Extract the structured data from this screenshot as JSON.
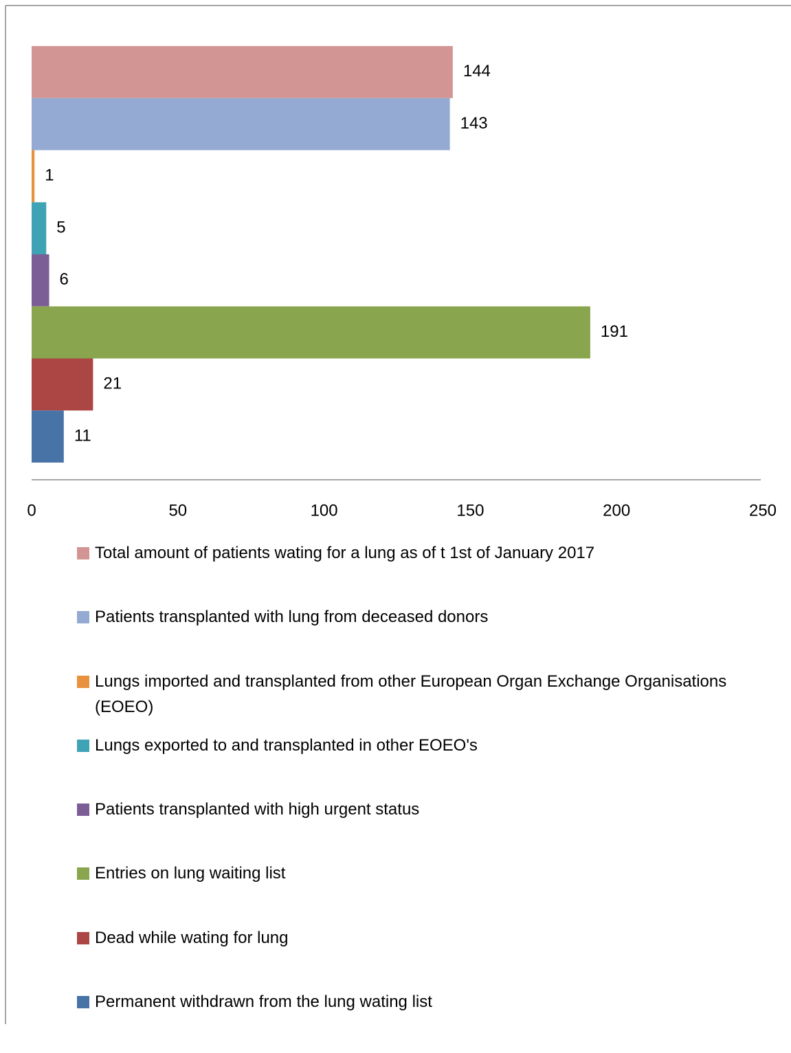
{
  "chart_data": {
    "type": "bar",
    "orientation": "horizontal",
    "legend": "bottom",
    "grid": false,
    "xlim": [
      0,
      250
    ],
    "xticks": [
      0,
      50,
      100,
      150,
      200,
      250
    ],
    "series": [
      {
        "name": "Total amount of patients wating for a lung as of t 1st of January 2017",
        "color": "#d39594",
        "values": [
          144
        ]
      },
      {
        "name": "Patients transplanted with lung from deceased donors",
        "color": "#95aad3",
        "values": [
          143
        ]
      },
      {
        "name": "Lungs imported and transplanted from other European Organ Exchange Organisations (EOEO)",
        "color": "#e8923f",
        "values": [
          1
        ]
      },
      {
        "name": "Lungs exported to and transplanted in other EOEO's",
        "color": "#3fa2b5",
        "values": [
          5
        ]
      },
      {
        "name": "Patients transplanted with high urgent status",
        "color": "#7c5e96",
        "values": [
          6
        ]
      },
      {
        "name": "Entries on lung waiting list",
        "color": "#89a54e",
        "values": [
          191
        ]
      },
      {
        "name": "Dead while wating for lung",
        "color": "#ac4645",
        "values": [
          21
        ]
      },
      {
        "name": "Permanent withdrawn from the lung wating list",
        "color": "#4873a6",
        "values": [
          11
        ]
      }
    ]
  }
}
